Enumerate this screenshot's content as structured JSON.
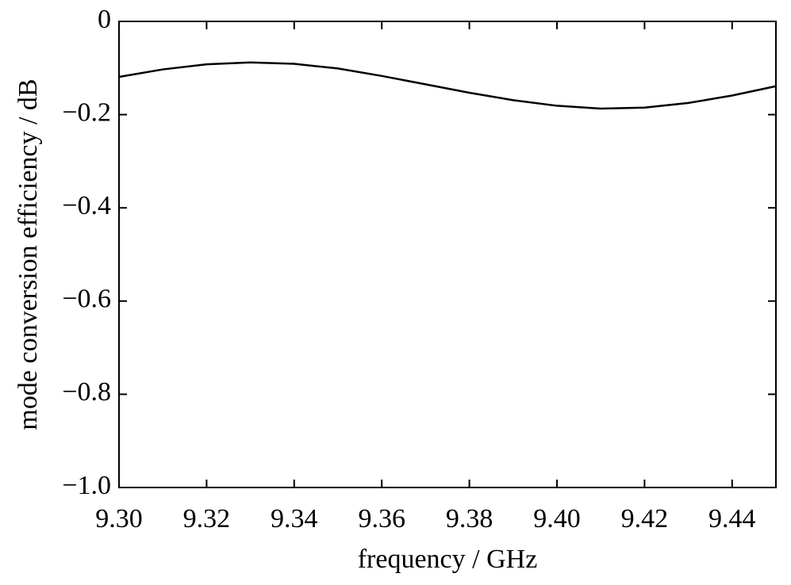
{
  "chart_data": {
    "type": "line",
    "x_label": "frequency / GHz",
    "y_label": "mode conversion efficiency / dB",
    "x": [
      9.3,
      9.31,
      9.32,
      9.33,
      9.34,
      9.35,
      9.36,
      9.37,
      9.38,
      9.39,
      9.4,
      9.41,
      9.42,
      9.43,
      9.44,
      9.45
    ],
    "series": [
      {
        "color": "#000000",
        "values": [
          -0.119,
          -0.103,
          -0.092,
          -0.088,
          -0.091,
          -0.101,
          -0.117,
          -0.135,
          -0.153,
          -0.169,
          -0.181,
          -0.187,
          -0.185,
          -0.175,
          -0.159,
          -0.139
        ]
      }
    ],
    "xlim": [
      9.3,
      9.45
    ],
    "xticks": [
      {
        "value": 9.3,
        "label": "9.30"
      },
      {
        "value": 9.32,
        "label": "9.32"
      },
      {
        "value": 9.34,
        "label": "9.34"
      },
      {
        "value": 9.36,
        "label": "9.36"
      },
      {
        "value": 9.38,
        "label": "9.38"
      },
      {
        "value": 9.4,
        "label": "9.40"
      },
      {
        "value": 9.42,
        "label": "9.42"
      },
      {
        "value": 9.44,
        "label": "9.44"
      }
    ],
    "ylim": [
      -1.0,
      0
    ],
    "yticks": [
      {
        "value": -1.0,
        "label": "−1.0"
      },
      {
        "value": -0.8,
        "label": "−0.8"
      },
      {
        "value": -0.6,
        "label": "−0.6"
      },
      {
        "value": -0.4,
        "label": "−0.4"
      },
      {
        "value": -0.2,
        "label": "−0.2"
      },
      0
    ],
    "grid": false
  }
}
